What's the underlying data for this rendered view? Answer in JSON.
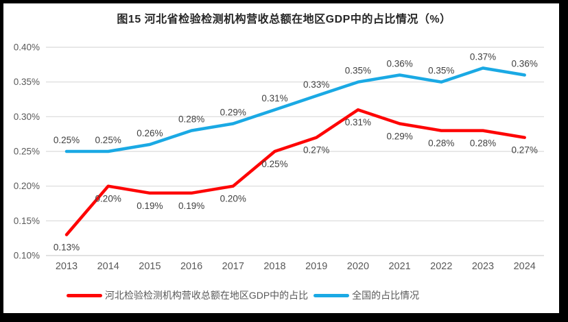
{
  "frame": {
    "background": "#000000",
    "panel_background": "#FFFFFF"
  },
  "title": "图15 河北省检验检测机构营收总额在地区GDP中的占比情况（%）",
  "chart_data": {
    "type": "line",
    "categories": [
      "2013",
      "2014",
      "2015",
      "2016",
      "2017",
      "2018",
      "2019",
      "2020",
      "2021",
      "2022",
      "2023",
      "2024"
    ],
    "series": [
      {
        "name": "河北检验检测机构营收总额在地区GDP中的占比",
        "color": "#FE0505",
        "values": [
          0.13,
          0.2,
          0.19,
          0.19,
          0.2,
          0.25,
          0.27,
          0.31,
          0.29,
          0.28,
          0.28,
          0.27
        ],
        "labels": [
          "0.13%",
          "0.20%",
          "0.19%",
          "0.19%",
          "0.20%",
          "0.25%",
          "0.27%",
          "0.31%",
          "0.29%",
          "0.28%",
          "0.28%",
          "0.27%"
        ],
        "label_position": "below"
      },
      {
        "name": "全国的占比情况",
        "color": "#1AA9E4",
        "values": [
          0.25,
          0.25,
          0.26,
          0.28,
          0.29,
          0.31,
          0.33,
          0.35,
          0.36,
          0.35,
          0.37,
          0.36
        ],
        "labels": [
          "0.25%",
          "0.25%",
          "0.26%",
          "0.28%",
          "0.29%",
          "0.31%",
          "0.33%",
          "0.35%",
          "0.36%",
          "0.35%",
          "0.37%",
          "0.36%"
        ],
        "label_position": "above"
      }
    ],
    "ylim": [
      0.1,
      0.4
    ],
    "ytick_step": 0.05,
    "ytick_labels": [
      "0.10%",
      "0.15%",
      "0.20%",
      "0.25%",
      "0.30%",
      "0.35%",
      "0.40%"
    ],
    "xlabel": "",
    "ylabel": "",
    "grid": true,
    "legend_position": "bottom",
    "grid_color": "#D9D9D9",
    "axis_label_color": "#595959",
    "data_label_color": "#404040"
  }
}
